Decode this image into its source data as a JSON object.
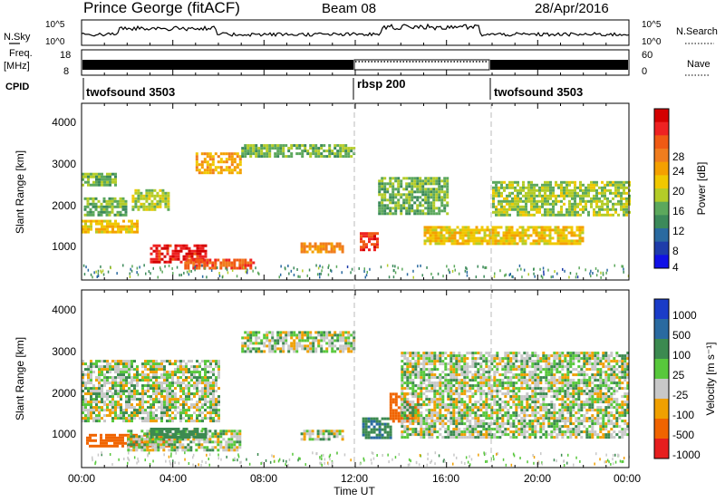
{
  "header": {
    "station": "Prince George (fitACF)",
    "beam": "Beam 08",
    "date": "28/Apr/2016"
  },
  "top_panels": {
    "nsky_label": "N.Sky",
    "nsky_ticks": [
      "10^5",
      "10^0"
    ],
    "nsearch_label": "N.Search",
    "nsearch_ticks": [
      "10^5",
      "10^0"
    ],
    "freq_label_1": "Freq.",
    "freq_label_2": "[MHz]",
    "freq_ticks": [
      "18",
      "8"
    ],
    "nave_label": "Nave",
    "nave_ticks": [
      "60",
      "0"
    ],
    "cpid_label": "CPID",
    "cpid_segments": [
      {
        "label": "twofsound 3503",
        "start_hour": 0
      },
      {
        "label": "rbsp 200",
        "start_hour": 12
      },
      {
        "label": "twofsound 3503",
        "start_hour": 18
      }
    ]
  },
  "x_axis": {
    "title": "Time UT",
    "ticks": [
      "00:00",
      "04:00",
      "08:00",
      "12:00",
      "16:00",
      "20:00",
      "00:00"
    ],
    "range_hours": [
      0,
      24
    ],
    "vertical_markers_hours": [
      12,
      18
    ]
  },
  "power_panel": {
    "ylabel": "Slant Range [km]",
    "yticks": [
      "4000",
      "3000",
      "2000",
      "1000"
    ],
    "ylim_km": [
      180,
      4500
    ],
    "colorbar_label": "Power [dB]",
    "colorbar_ticks": [
      "28",
      "24",
      "20",
      "16",
      "12",
      "8",
      "4"
    ],
    "colorbar_colors": [
      "#d40000",
      "#ee2222",
      "#f05a14",
      "#f07d1e",
      "#f4a000",
      "#f0c800",
      "#b4cc28",
      "#5ca85c",
      "#3c8a5a",
      "#2a6aa0",
      "#1e3caa",
      "#1010e6"
    ]
  },
  "velocity_panel": {
    "ylabel": "Slant Range [km]",
    "yticks": [
      "4000",
      "3000",
      "2000",
      "1000"
    ],
    "ylim_km": [
      180,
      4500
    ],
    "colorbar_label": "Velocity [m s⁻¹]",
    "colorbar_ticks": [
      "1000",
      "500",
      "100",
      "25",
      "-25",
      "-100",
      "-500",
      "-1000"
    ],
    "colorbar_colors": [
      "#1a3cc8",
      "#2a6aa0",
      "#3c8a50",
      "#58c83c",
      "#c8c8c8",
      "#f0a000",
      "#f06400",
      "#e61e1e"
    ]
  },
  "chart_data": [
    {
      "type": "heatmap",
      "title": "Prince George (fitACF)   Beam 08   28/Apr/2016",
      "xlabel": "Time UT",
      "ylabel": "Slant Range [km]",
      "colorbar": "Power [dB]",
      "xlim_hours": [
        0,
        24
      ],
      "ylim_km": [
        180,
        4500
      ],
      "color_range_db": [
        0,
        32
      ],
      "regions": [
        {
          "t": [
            0.0,
            1.5
          ],
          "r": [
            2500,
            2800
          ],
          "db": 12
        },
        {
          "t": [
            0.0,
            2.5
          ],
          "r": [
            1350,
            1650
          ],
          "db": 18
        },
        {
          "t": [
            0.1,
            2.0
          ],
          "r": [
            1800,
            2200
          ],
          "db": 12
        },
        {
          "t": [
            2.2,
            3.8
          ],
          "r": [
            1900,
            2400
          ],
          "db": 14
        },
        {
          "t": [
            3.0,
            5.5
          ],
          "r": [
            650,
            1050
          ],
          "db": 30
        },
        {
          "t": [
            4.5,
            7.5
          ],
          "r": [
            480,
            700
          ],
          "db": 26
        },
        {
          "t": [
            5.0,
            7.0
          ],
          "r": [
            2800,
            3300
          ],
          "db": 20
        },
        {
          "t": [
            7.0,
            12.0
          ],
          "r": [
            3200,
            3500
          ],
          "db": 12
        },
        {
          "t": [
            9.6,
            11.5
          ],
          "r": [
            900,
            1100
          ],
          "db": 22
        },
        {
          "t": [
            12.2,
            13.0
          ],
          "r": [
            900,
            1350
          ],
          "db": 28
        },
        {
          "t": [
            13.0,
            16.0
          ],
          "r": [
            1800,
            2700
          ],
          "db": 12
        },
        {
          "t": [
            15.0,
            22.0
          ],
          "r": [
            1100,
            1500
          ],
          "db": 18
        },
        {
          "t": [
            18.0,
            24.0
          ],
          "r": [
            1800,
            2600
          ],
          "db": 14
        }
      ]
    },
    {
      "type": "heatmap",
      "xlabel": "Time UT",
      "ylabel": "Slant Range [km]",
      "colorbar": "Velocity [m s⁻¹]",
      "xlim_hours": [
        0,
        24
      ],
      "ylim_km": [
        180,
        4500
      ],
      "color_levels_ms": [
        1000,
        500,
        100,
        25,
        -25,
        -100,
        -500,
        -1000
      ],
      "regions": [
        {
          "t": [
            0.0,
            6.0
          ],
          "r": [
            1300,
            2800
          ],
          "v": 0
        },
        {
          "t": [
            0.2,
            4.0
          ],
          "r": [
            700,
            1000
          ],
          "v": -150
        },
        {
          "t": [
            2.0,
            7.0
          ],
          "r": [
            600,
            1100
          ],
          "v": 0
        },
        {
          "t": [
            3.0,
            5.5
          ],
          "r": [
            950,
            1150
          ],
          "v": 60
        },
        {
          "t": [
            7.0,
            12.0
          ],
          "r": [
            3000,
            3500
          ],
          "v": 0
        },
        {
          "t": [
            9.6,
            11.5
          ],
          "r": [
            900,
            1100
          ],
          "v": 0
        },
        {
          "t": [
            12.3,
            13.5
          ],
          "r": [
            900,
            1400
          ],
          "v": 80
        },
        {
          "t": [
            13.5,
            14.8
          ],
          "r": [
            1300,
            2000
          ],
          "v": -150
        },
        {
          "t": [
            14.0,
            24.0
          ],
          "r": [
            900,
            3000
          ],
          "v": 0
        }
      ]
    }
  ]
}
